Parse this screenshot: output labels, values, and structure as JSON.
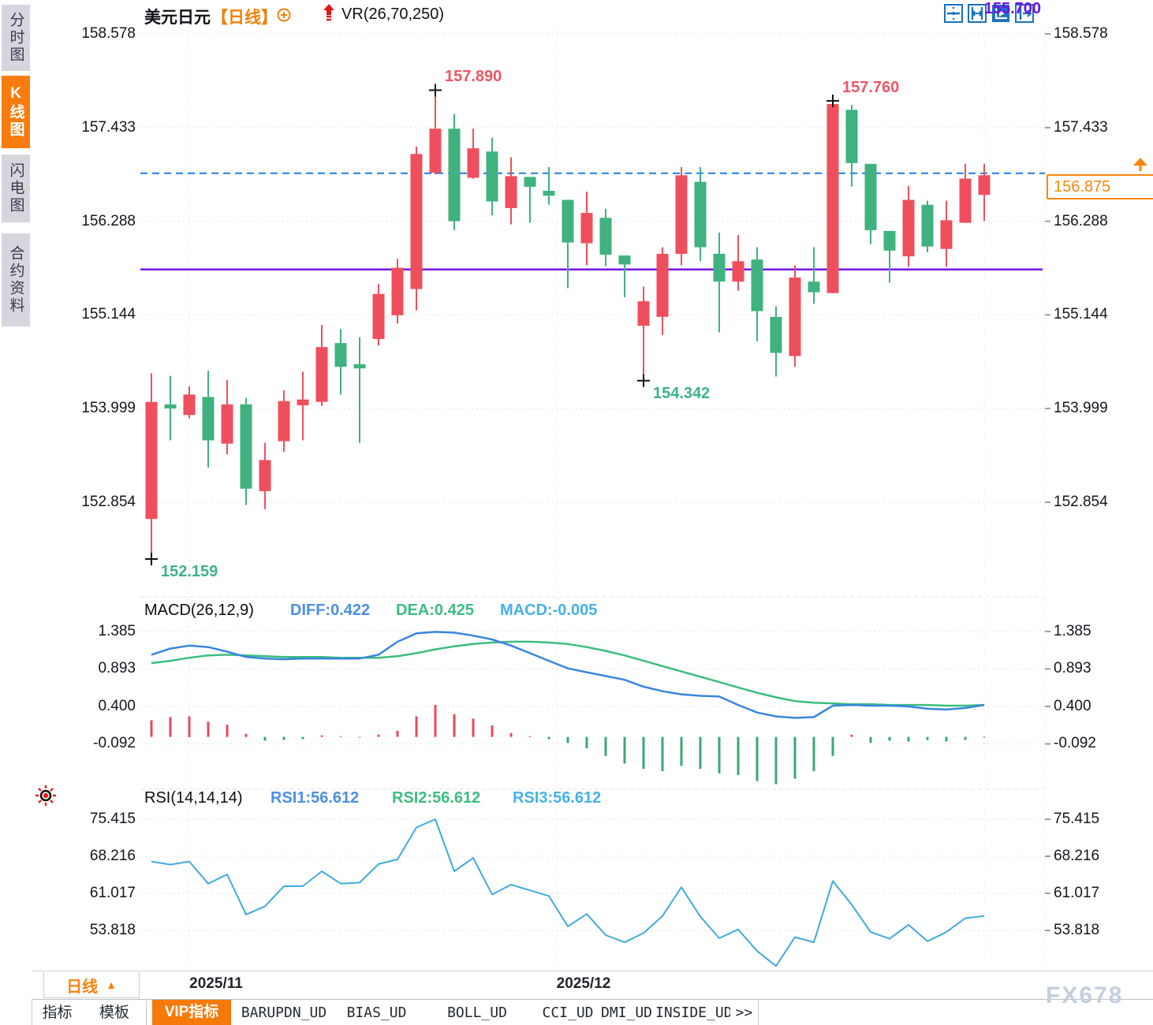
{
  "header": {
    "symbol": "美元日元",
    "period_tag": "【日线】",
    "indicator": "VR(26,70,250)"
  },
  "sidebar": {
    "items": [
      {
        "label": "分时图",
        "active": false
      },
      {
        "label": "K线图",
        "active": true
      },
      {
        "label": "闪电图",
        "active": false
      },
      {
        "label": "合约资料",
        "active": false
      }
    ]
  },
  "toolbar": {
    "icons": [
      "move-crosshair-icon",
      "axis-range-icon",
      "auto-scale-icon",
      "shift-axis-icon"
    ]
  },
  "colors": {
    "up_candle": "#ef4f5d",
    "down_candle": "#3fb27f",
    "accent_orange": "#f8820a",
    "last_price_line": "#1f7ee6",
    "support_line": "#7a10e8",
    "diff_line": "#3a86e0",
    "dea_line": "#3dbd7d",
    "rsi_line": "#42aadc"
  },
  "macd_header": {
    "title": "MACD(26,12,9)",
    "diff": "DIFF:0.422",
    "dea": "DEA:0.425",
    "macd": "MACD:-0.005"
  },
  "rsi_header": {
    "title": "RSI(14,14,14)",
    "rsi1": "RSI1:56.612",
    "rsi2": "RSI2:56.612",
    "rsi3": "RSI3:56.612"
  },
  "levels": {
    "support_label": "155.700",
    "last_price_label": "156.875"
  },
  "xaxis": {
    "period_button": "日线",
    "months": [
      "2025/11",
      "2025/12"
    ]
  },
  "tabs": [
    {
      "label": "指标",
      "active": false,
      "mono": false
    },
    {
      "label": "模板",
      "active": false,
      "mono": false
    },
    {
      "label": "VIP指标",
      "active": true,
      "mono": false
    },
    {
      "label": "BARUPDN_UD",
      "active": false,
      "mono": true
    },
    {
      "label": "BIAS_UD",
      "active": false,
      "mono": true
    },
    {
      "label": "BOLL_UD",
      "active": false,
      "mono": true
    },
    {
      "label": "CCI_UD",
      "active": false,
      "mono": true
    },
    {
      "label": "DMI_UD",
      "active": false,
      "mono": true
    },
    {
      "label": "INSIDE_UD",
      "active": false,
      "mono": true
    },
    {
      "label": ">>",
      "active": false,
      "mono": true
    }
  ],
  "watermark": "FX678",
  "chart_data": {
    "type": "candlestick",
    "symbol": "USD/JPY daily",
    "price_ticks": [
      "158.578",
      "157.433",
      "156.288",
      "155.144",
      "153.999",
      "152.854"
    ],
    "candles_ohlc": [
      [
        152.65,
        154.43,
        152.16,
        154.08
      ],
      [
        154.05,
        154.4,
        153.61,
        154.0
      ],
      [
        153.92,
        154.27,
        153.88,
        154.17
      ],
      [
        154.14,
        154.46,
        153.28,
        153.61
      ],
      [
        153.57,
        154.35,
        153.44,
        154.05
      ],
      [
        154.05,
        154.13,
        152.82,
        153.02
      ],
      [
        152.99,
        153.58,
        152.77,
        153.37
      ],
      [
        153.6,
        154.22,
        153.47,
        154.09
      ],
      [
        154.04,
        154.45,
        153.61,
        154.11
      ],
      [
        154.08,
        155.02,
        154.03,
        154.75
      ],
      [
        154.8,
        154.97,
        154.17,
        154.51
      ],
      [
        154.54,
        154.87,
        153.58,
        154.49
      ],
      [
        154.85,
        155.52,
        154.77,
        155.4
      ],
      [
        155.14,
        155.83,
        155.04,
        155.72
      ],
      [
        155.46,
        157.2,
        155.2,
        157.11
      ],
      [
        156.88,
        157.89,
        156.86,
        157.42
      ],
      [
        157.42,
        157.6,
        156.18,
        156.29
      ],
      [
        156.82,
        157.42,
        156.81,
        157.18
      ],
      [
        157.14,
        157.31,
        156.36,
        156.53
      ],
      [
        156.45,
        157.07,
        156.25,
        156.84
      ],
      [
        156.83,
        156.83,
        156.27,
        156.71
      ],
      [
        156.66,
        156.95,
        156.49,
        156.6
      ],
      [
        156.55,
        156.55,
        155.47,
        156.03
      ],
      [
        156.02,
        156.65,
        155.75,
        156.39
      ],
      [
        156.33,
        156.44,
        155.74,
        155.88
      ],
      [
        155.87,
        155.87,
        155.36,
        155.76
      ],
      [
        155.01,
        155.49,
        154.34,
        155.31
      ],
      [
        155.12,
        155.97,
        154.9,
        155.89
      ],
      [
        155.89,
        156.95,
        155.75,
        156.85
      ],
      [
        156.77,
        156.95,
        155.8,
        155.97
      ],
      [
        155.89,
        156.15,
        154.93,
        155.55
      ],
      [
        155.55,
        156.12,
        155.44,
        155.8
      ],
      [
        155.82,
        155.97,
        154.82,
        155.19
      ],
      [
        155.12,
        155.25,
        154.39,
        154.68
      ],
      [
        154.64,
        155.75,
        154.51,
        155.6
      ],
      [
        155.55,
        155.97,
        155.28,
        155.42
      ],
      [
        155.41,
        157.76,
        155.41,
        157.72
      ],
      [
        157.65,
        157.71,
        156.71,
        157.0
      ],
      [
        156.99,
        156.99,
        156.01,
        156.18
      ],
      [
        156.17,
        156.17,
        155.54,
        155.93
      ],
      [
        155.86,
        156.72,
        155.73,
        156.55
      ],
      [
        156.49,
        156.54,
        155.91,
        155.98
      ],
      [
        155.95,
        156.54,
        155.73,
        156.3
      ],
      [
        156.27,
        156.99,
        156.27,
        156.81
      ],
      [
        156.61,
        156.99,
        156.29,
        156.85
      ]
    ],
    "annotations": [
      {
        "text": "157.890",
        "candle": 16,
        "at": "high",
        "color": "red"
      },
      {
        "text": "157.760",
        "candle": 37,
        "at": "high",
        "color": "red"
      },
      {
        "text": "154.342",
        "candle": 27,
        "at": "low",
        "color": "green"
      },
      {
        "text": "152.159",
        "candle": 1,
        "at": "low",
        "color": "green"
      }
    ],
    "support_level": 155.7,
    "last_price": 156.875,
    "macd": {
      "ticks": [
        "1.385",
        "0.893",
        "0.400",
        "-0.092"
      ],
      "diff": [
        1.08,
        1.16,
        1.2,
        1.18,
        1.12,
        1.05,
        1.03,
        1.02,
        1.03,
        1.03,
        1.03,
        1.03,
        1.08,
        1.25,
        1.36,
        1.38,
        1.37,
        1.33,
        1.28,
        1.2,
        1.1,
        1.0,
        0.9,
        0.85,
        0.8,
        0.75,
        0.66,
        0.6,
        0.56,
        0.54,
        0.53,
        0.42,
        0.32,
        0.27,
        0.25,
        0.26,
        0.41,
        0.42,
        0.41,
        0.41,
        0.4,
        0.37,
        0.36,
        0.38,
        0.42
      ],
      "dea": [
        0.97,
        1.0,
        1.04,
        1.07,
        1.08,
        1.07,
        1.06,
        1.05,
        1.05,
        1.05,
        1.04,
        1.04,
        1.04,
        1.06,
        1.1,
        1.15,
        1.19,
        1.22,
        1.24,
        1.25,
        1.25,
        1.24,
        1.22,
        1.18,
        1.13,
        1.07,
        1.0,
        0.93,
        0.86,
        0.79,
        0.72,
        0.65,
        0.58,
        0.52,
        0.47,
        0.45,
        0.44,
        0.43,
        0.43,
        0.42,
        0.42,
        0.42,
        0.41,
        0.41,
        0.42
      ],
      "hist": [
        0.22,
        0.26,
        0.27,
        0.2,
        0.16,
        0.04,
        -0.05,
        -0.04,
        -0.03,
        0.02,
        0.01,
        -0.01,
        0.03,
        0.08,
        0.27,
        0.42,
        0.3,
        0.24,
        0.15,
        0.05,
        0.01,
        -0.03,
        -0.08,
        -0.15,
        -0.25,
        -0.35,
        -0.42,
        -0.45,
        -0.38,
        -0.42,
        -0.48,
        -0.5,
        -0.58,
        -0.62,
        -0.55,
        -0.45,
        -0.25,
        0.03,
        -0.08,
        -0.05,
        -0.06,
        -0.04,
        -0.06,
        -0.04,
        -0.01
      ]
    },
    "rsi": {
      "ticks": [
        "75.415",
        "68.216",
        "61.017",
        "53.818"
      ],
      "values": [
        67.2,
        66.6,
        67.2,
        62.9,
        64.7,
        56.9,
        58.5,
        62.4,
        62.4,
        65.3,
        62.9,
        63.1,
        66.7,
        67.6,
        73.8,
        75.4,
        65.3,
        67.9,
        60.8,
        62.7,
        61.6,
        60.5,
        54.6,
        57.0,
        52.9,
        51.5,
        53.3,
        56.6,
        62.2,
        56.5,
        52.3,
        54.0,
        49.8,
        46.9,
        52.5,
        51.5,
        63.4,
        58.8,
        53.5,
        52.2,
        54.9,
        51.7,
        53.5,
        56.2,
        56.6
      ]
    }
  }
}
